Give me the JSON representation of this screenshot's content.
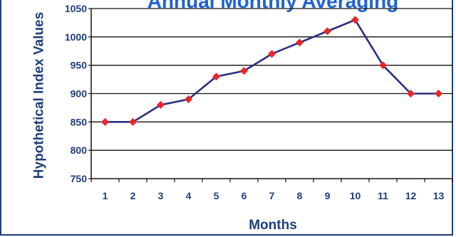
{
  "chart_data": {
    "type": "line",
    "title": "Annual Monthly Averaging",
    "xlabel": "Months",
    "ylabel": "Hypothetical Index Values",
    "x": [
      1,
      2,
      3,
      4,
      5,
      6,
      7,
      8,
      9,
      10,
      11,
      12,
      13
    ],
    "values": [
      850,
      850,
      880,
      890,
      930,
      940,
      970,
      990,
      1010,
      1030,
      950,
      900,
      900
    ],
    "ylim": [
      750,
      1050
    ],
    "yticks": [
      750,
      800,
      850,
      900,
      950,
      1000,
      1050
    ],
    "grid": true,
    "line_color": "#2b2f7e",
    "marker_color": "#e8262a",
    "gridline_color": "#111111"
  }
}
